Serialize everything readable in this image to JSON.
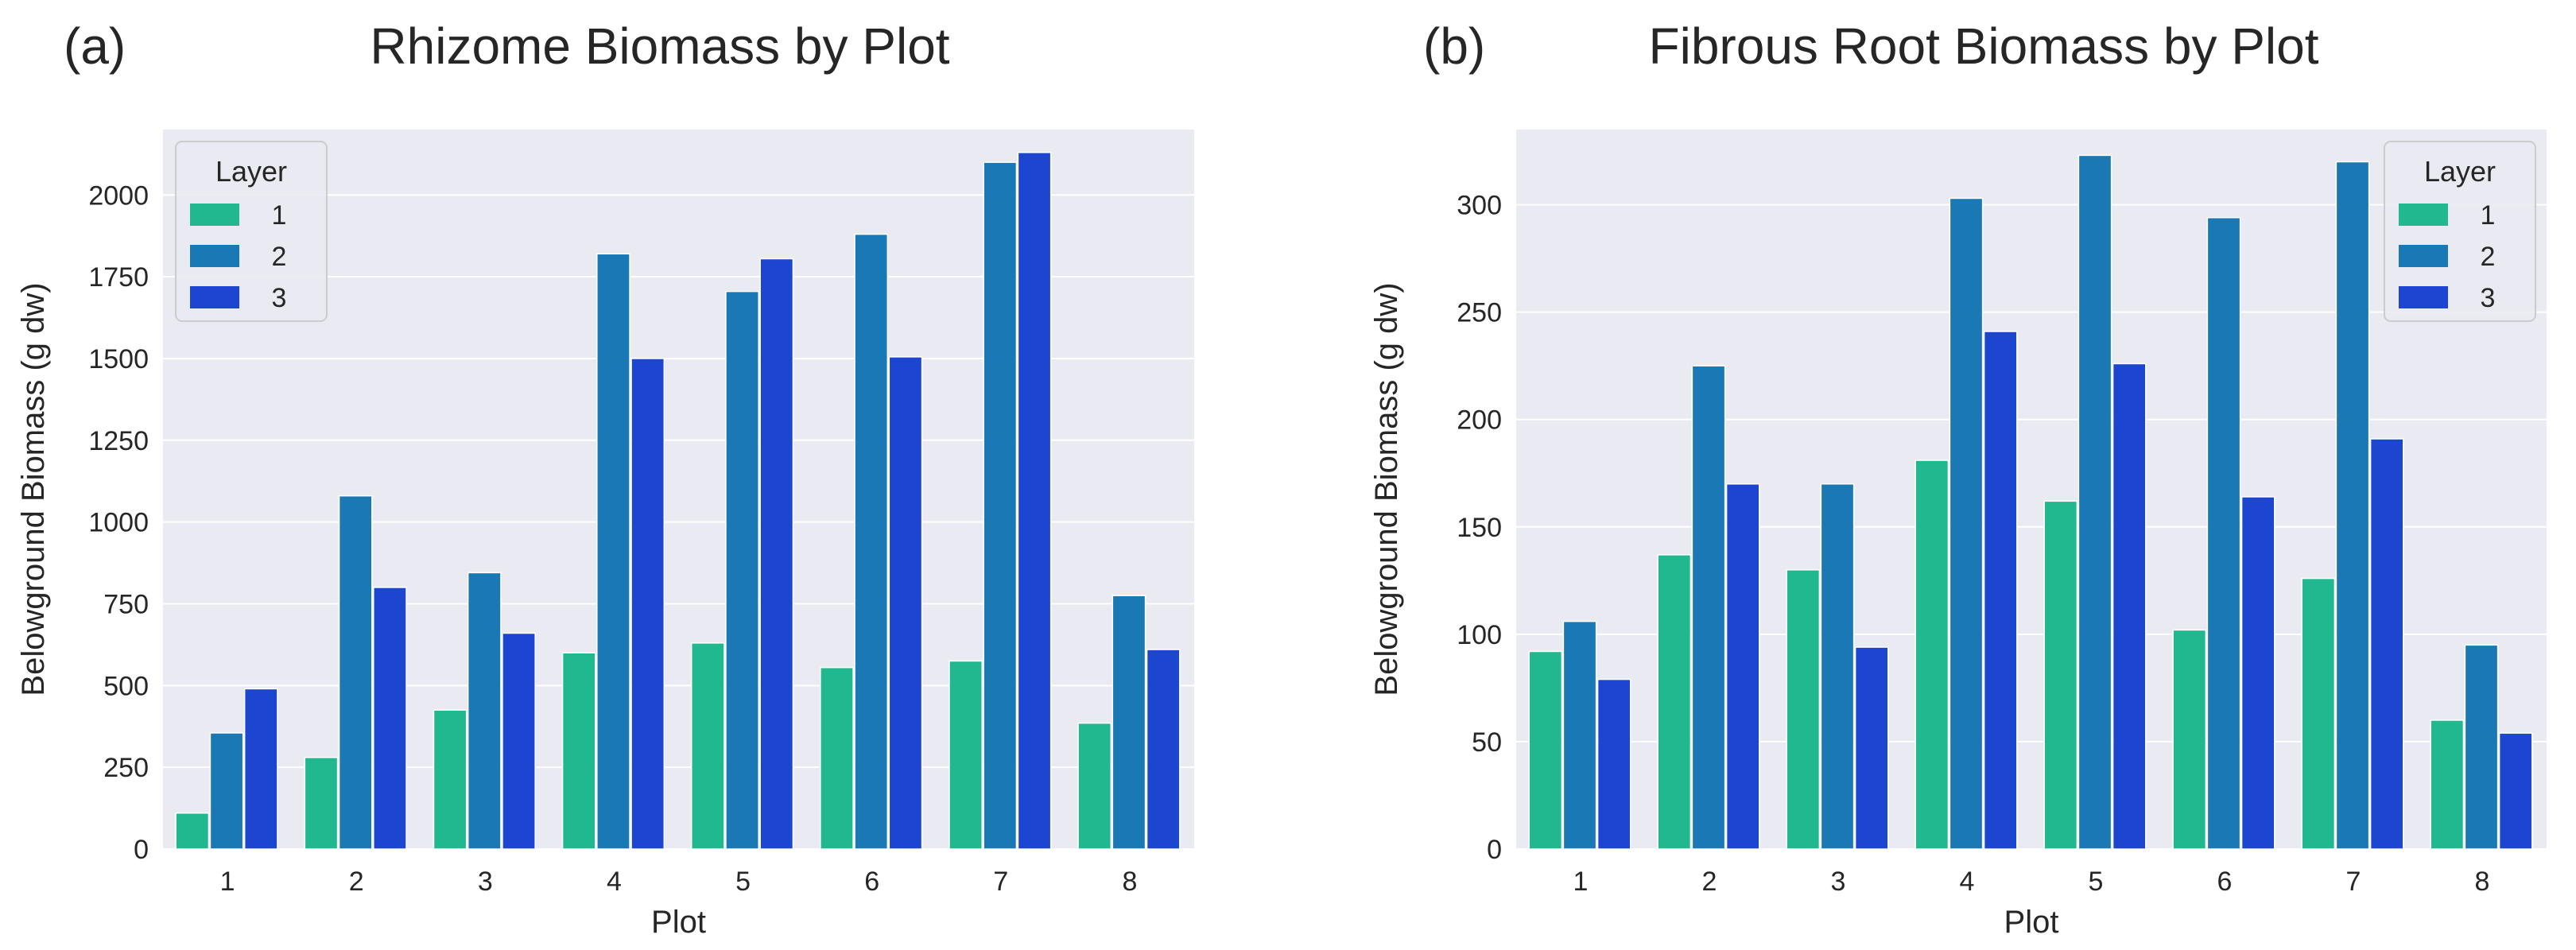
{
  "colors": {
    "plot_bg": "#EAEAF2",
    "grid": "#FFFFFF",
    "text": "#262626",
    "layer_1": "#21B890",
    "layer_2": "#1A78B4",
    "layer_3": "#1C46CF"
  },
  "chart_data": [
    {
      "type": "bar",
      "panel_label": "(a)",
      "title": "Rhizome Biomass by Plot",
      "xlabel": "Plot",
      "ylabel": "Belowground Biomass (g dw)",
      "categories": [
        "1",
        "2",
        "3",
        "4",
        "5",
        "6",
        "7",
        "8"
      ],
      "ylim": [
        0,
        2200
      ],
      "yticks": [
        0,
        250,
        500,
        750,
        1000,
        1250,
        1500,
        1750,
        2000
      ],
      "legend_title": "Layer",
      "legend_position": "top-left",
      "series": [
        {
          "name": "1",
          "values": [
            110,
            280,
            425,
            600,
            630,
            555,
            575,
            385
          ]
        },
        {
          "name": "2",
          "values": [
            355,
            1080,
            845,
            1820,
            1705,
            1880,
            2100,
            775
          ]
        },
        {
          "name": "3",
          "values": [
            490,
            800,
            660,
            1500,
            1805,
            1505,
            2130,
            610
          ]
        }
      ]
    },
    {
      "type": "bar",
      "panel_label": "(b)",
      "title": "Fibrous Root Biomass by Plot",
      "xlabel": "Plot",
      "ylabel": "Belowground Biomass (g dw)",
      "categories": [
        "1",
        "2",
        "3",
        "4",
        "5",
        "6",
        "7",
        "8"
      ],
      "ylim": [
        0,
        335
      ],
      "yticks": [
        0,
        50,
        100,
        150,
        200,
        250,
        300
      ],
      "legend_title": "Layer",
      "legend_position": "top-right",
      "series": [
        {
          "name": "1",
          "values": [
            92,
            137,
            130,
            181,
            162,
            102,
            126,
            60
          ]
        },
        {
          "name": "2",
          "values": [
            106,
            225,
            170,
            303,
            323,
            294,
            320,
            95
          ]
        },
        {
          "name": "3",
          "values": [
            79,
            170,
            94,
            241,
            226,
            164,
            191,
            54
          ]
        }
      ]
    }
  ]
}
